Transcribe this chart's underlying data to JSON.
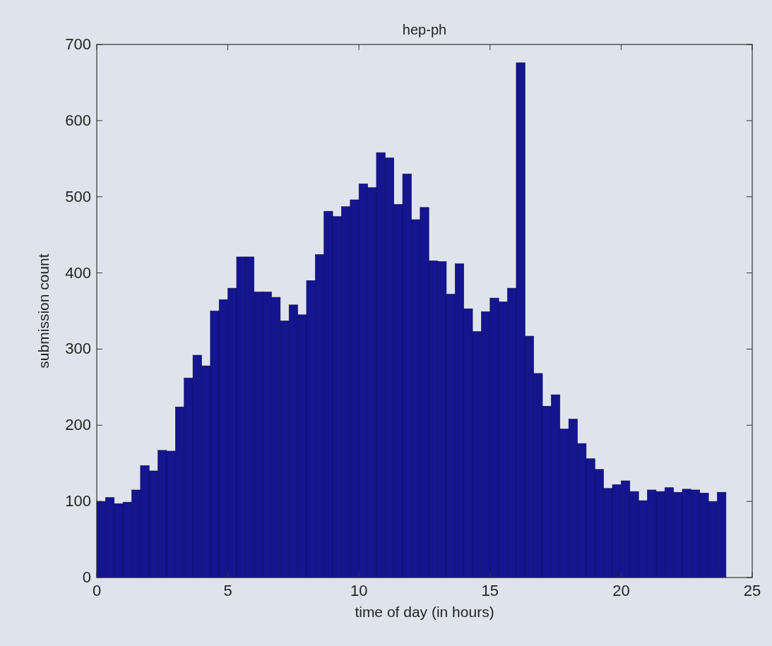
{
  "chart_data": {
    "type": "histogram",
    "title": "hep-ph",
    "xlabel": "time of day (in hours)",
    "ylabel": "submission count",
    "color": "#15158f",
    "bins": [
      0,
      0.3333,
      0.6667,
      1,
      1.3333,
      1.6667,
      2,
      2.3333,
      2.6667,
      3,
      3.3333,
      3.6667,
      4,
      4.3333,
      4.6667,
      5,
      5.3333,
      5.6667,
      6,
      6.3333,
      6.6667,
      7,
      7.3333,
      7.6667,
      8,
      8.3333,
      8.6667,
      9,
      9.3333,
      9.6667,
      10,
      10.3333,
      10.6667,
      11,
      11.3333,
      11.6667,
      12,
      12.3333,
      12.6667,
      13,
      13.3333,
      13.6667,
      14,
      14.3333,
      14.6667,
      15,
      15.3333,
      15.6667,
      16,
      16.3333,
      16.6667,
      17,
      17.3333,
      17.6667,
      18,
      18.3333,
      18.6667,
      19,
      19.3333,
      19.6667,
      20,
      20.3333,
      20.6667,
      21,
      21.3333,
      21.6667,
      22,
      22.3333,
      22.6667,
      23,
      23.3333,
      23.6667,
      24
    ],
    "values": [
      100,
      105,
      97,
      99,
      115,
      147,
      140,
      167,
      166,
      224,
      262,
      292,
      278,
      350,
      365,
      380,
      421,
      421,
      375,
      375,
      368,
      337,
      358,
      345,
      390,
      424,
      481,
      474,
      487,
      496,
      517,
      512,
      558,
      551,
      490,
      530,
      470,
      486,
      416,
      415,
      372,
      412,
      353,
      323,
      349,
      367,
      362,
      380,
      676,
      317,
      268,
      225,
      240,
      195,
      208,
      176,
      156,
      142,
      117,
      122,
      127,
      113,
      101,
      115,
      113,
      118,
      112,
      116,
      115,
      111,
      100,
      112
    ],
    "xlim": [
      0,
      25
    ],
    "xticks": [
      0,
      5,
      10,
      15,
      20,
      25
    ],
    "ylim": [
      0,
      700
    ],
    "yticks": [
      0,
      100,
      200,
      300,
      400,
      500,
      600,
      700
    ],
    "grid": false
  }
}
